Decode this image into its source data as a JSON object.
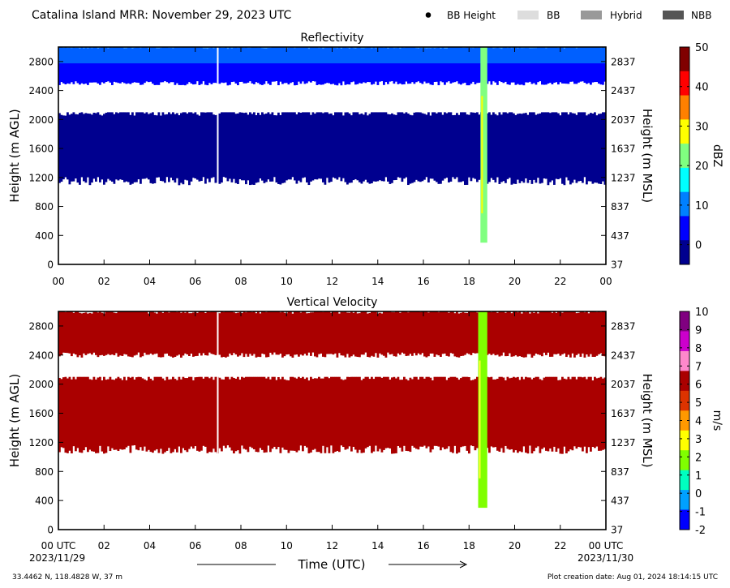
{
  "header": {
    "title": "Catalina Island MRR:  November 29, 2023 UTC",
    "legend": [
      {
        "label": "BB Height",
        "symbol": "dot",
        "color": "#000000"
      },
      {
        "label": "BB",
        "symbol": "bar",
        "color": "#dddddd"
      },
      {
        "label": "Hybrid",
        "symbol": "bar",
        "color": "#999999"
      },
      {
        "label": "NBB",
        "symbol": "bar",
        "color": "#555555"
      }
    ]
  },
  "footer": {
    "location": "33.4462 N, 118.4828 W, 37 m",
    "creation": "Plot creation date: Aug 01, 2024 18:14:15 UTC",
    "start_date": "2023/11/29",
    "end_date": "2023/11/30",
    "xlabel": "Time (UTC)"
  },
  "chart_data": [
    {
      "type": "heatmap",
      "title": "Reflectivity",
      "xlabel": "Time (UTC)",
      "ylabel": "Height (m AGL)",
      "ylabel_right": "Height (m MSL)",
      "x_ticks": [
        "00",
        "02",
        "04",
        "06",
        "08",
        "10",
        "12",
        "14",
        "16",
        "18",
        "20",
        "22",
        "00"
      ],
      "y_ticks": [
        0,
        400,
        800,
        1200,
        1600,
        2000,
        2400,
        2800
      ],
      "y_ticks_right": [
        37,
        437,
        837,
        1237,
        1637,
        2037,
        2437,
        2837
      ],
      "xlim": [
        0,
        24
      ],
      "ylim": [
        0,
        3000
      ],
      "colorbar": {
        "label": "dBZ",
        "ticks": [
          0,
          10,
          20,
          30,
          40,
          50
        ],
        "range": [
          -5,
          50
        ],
        "colors": [
          "#00008f",
          "#0000ff",
          "#0080ff",
          "#00ffff",
          "#80ff80",
          "#ffff00",
          "#ff8000",
          "#ff0000",
          "#800000"
        ]
      },
      "layers": [
        {
          "name": "upper cloud",
          "time": [
            0,
            24
          ],
          "height": [
            2500,
            3000
          ],
          "value_dBZ": 2
        },
        {
          "name": "lower cloud",
          "time": [
            0,
            24
          ],
          "height": [
            1150,
            2100
          ],
          "value_dBZ": 0
        },
        {
          "name": "precip column",
          "time": [
            18.5,
            18.8
          ],
          "height": [
            300,
            3000
          ],
          "value_dBZ": 25
        }
      ]
    },
    {
      "type": "heatmap",
      "title": "Vertical Velocity",
      "xlabel": "Time (UTC)",
      "ylabel": "Height (m AGL)",
      "ylabel_right": "Height (m MSL)",
      "x_ticks": [
        "00 UTC",
        "02",
        "04",
        "06",
        "08",
        "10",
        "12",
        "14",
        "16",
        "18",
        "20",
        "22",
        "00 UTC"
      ],
      "y_ticks": [
        0,
        400,
        800,
        1200,
        1600,
        2000,
        2400,
        2800
      ],
      "y_ticks_right": [
        37,
        437,
        837,
        1237,
        1637,
        2037,
        2437,
        2837
      ],
      "xlim": [
        0,
        24
      ],
      "ylim": [
        0,
        3000
      ],
      "colorbar": {
        "label": "m/s",
        "ticks": [
          -2,
          -1,
          0,
          1,
          2,
          3,
          4,
          5,
          6,
          7,
          8,
          9,
          10
        ],
        "range": [
          -2,
          10
        ],
        "colors": [
          "#0000ff",
          "#00a0ff",
          "#00ffc0",
          "#80ff00",
          "#ffff00",
          "#ff9900",
          "#dd3300",
          "#aa0000",
          "#ff88cc",
          "#cc00cc",
          "#800080"
        ]
      },
      "layers": [
        {
          "name": "upper cloud",
          "time": [
            0,
            24
          ],
          "height": [
            2400,
            3000
          ],
          "value_ms": 6
        },
        {
          "name": "lower cloud",
          "time": [
            0,
            24
          ],
          "height": [
            1100,
            2100
          ],
          "value_ms": 6
        },
        {
          "name": "precip column",
          "time": [
            18.4,
            18.8
          ],
          "height": [
            300,
            3000
          ],
          "value_ms": 2
        }
      ]
    }
  ]
}
